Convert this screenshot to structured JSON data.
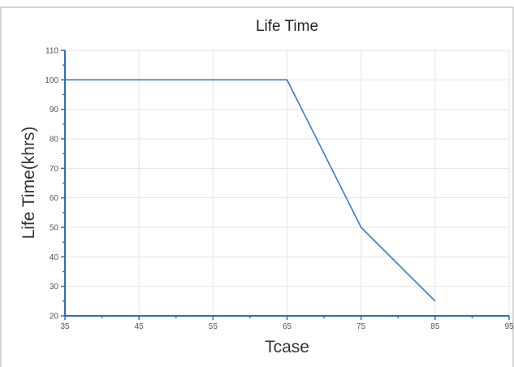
{
  "chart_data": {
    "type": "line",
    "title": "Life Time",
    "xlabel": "Tcase",
    "ylabel": "Life Time(khrs)",
    "xlim": [
      35,
      95
    ],
    "ylim": [
      20,
      110
    ],
    "xticks": [
      35,
      45,
      55,
      65,
      75,
      85,
      95
    ],
    "yticks": [
      20,
      30,
      40,
      50,
      60,
      70,
      80,
      90,
      100,
      110
    ],
    "grid": true,
    "series": [
      {
        "x": [
          35,
          65,
          75,
          85
        ],
        "y": [
          100,
          100,
          50,
          25
        ]
      }
    ]
  },
  "colors": {
    "line": "#3a7bbf",
    "axis": "#2f6db5",
    "grid": "#e3e3e3",
    "frame": "#aaaaaa"
  }
}
